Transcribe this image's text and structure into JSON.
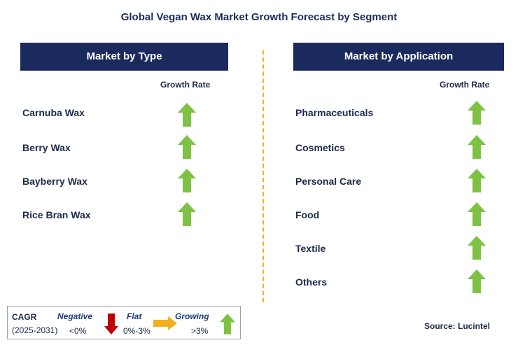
{
  "title": "Global Vegan Wax Market Growth Forecast by Segment",
  "left_panel": {
    "header": "Market by Type",
    "column_header": "Growth Rate",
    "items": [
      {
        "label": "Carnuba Wax",
        "trend": "growing"
      },
      {
        "label": "Berry Wax",
        "trend": "growing"
      },
      {
        "label": "Bayberry Wax",
        "trend": "growing"
      },
      {
        "label": "Rice Bran Wax",
        "trend": "growing"
      }
    ]
  },
  "right_panel": {
    "header": "Market by Application",
    "column_header": "Growth Rate",
    "items": [
      {
        "label": "Pharmaceuticals",
        "trend": "growing"
      },
      {
        "label": "Cosmetics",
        "trend": "growing"
      },
      {
        "label": "Personal Care",
        "trend": "growing"
      },
      {
        "label": "Food",
        "trend": "growing"
      },
      {
        "label": "Textile",
        "trend": "growing"
      },
      {
        "label": "Others",
        "trend": "growing"
      }
    ]
  },
  "legend": {
    "cagr_label": "CAGR",
    "period": "(2025-2031)",
    "negative_label": "Negative",
    "negative_range": "<0%",
    "flat_label": "Flat",
    "flat_range": "0%-3%",
    "growing_label": "Growing",
    "growing_range": ">3%"
  },
  "source": "Source: Lucintel",
  "colors": {
    "header_bg": "#1b2a5e",
    "growing_arrow": "#7dc242",
    "negative_arrow": "#c00000",
    "flat_arrow": "#f2b01e",
    "divider": "#f2b01e"
  },
  "icons": {
    "growing": "up-arrow-icon",
    "negative": "down-arrow-icon",
    "flat": "right-arrow-icon"
  }
}
